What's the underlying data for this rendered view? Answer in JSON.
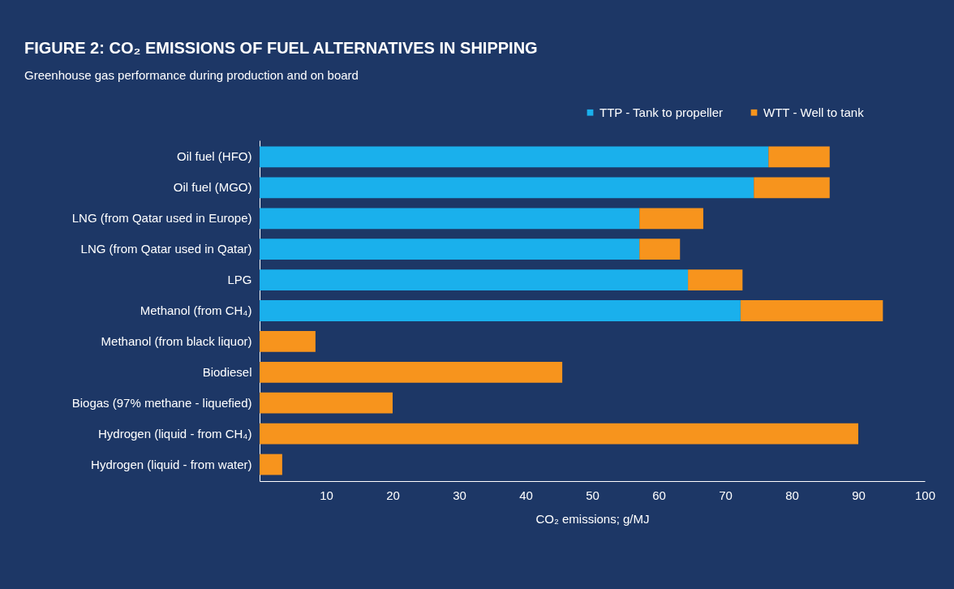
{
  "chart_data": {
    "type": "bar",
    "orientation": "horizontal",
    "stacked": true,
    "title": "FIGURE 2: CO₂ EMISSIONS OF FUEL ALTERNATIVES IN SHIPPING",
    "subtitle": "Greenhouse gas performance during production and on board",
    "xlabel": "CO₂ emissions; g/MJ",
    "categories": [
      "Oil fuel (HFO)",
      "Oil fuel (MGO)",
      "LNG (from Qatar used in Europe)",
      "LNG (from Qatar used in Qatar)",
      "LPG",
      "Methanol (from CH₄)",
      "Methanol (from black liquor)",
      "Biodiesel",
      "Biogas (97% methane - liquefied)",
      "Hydrogen (liquid - from CH₄)",
      "Hydrogen (liquid - from water)"
    ],
    "series": [
      {
        "name": "TTP - Tank to propeller",
        "color": "#1ab0ec",
        "values": [
          76.5,
          74.3,
          57.1,
          57.1,
          64.4,
          72.3,
          null,
          null,
          null,
          null,
          null
        ]
      },
      {
        "name": "WTT - Well to tank",
        "color": "#f7941d",
        "values": [
          9.2,
          11.4,
          9.6,
          6.1,
          8.2,
          21.4,
          8.4,
          45.5,
          20,
          90,
          3.4
        ]
      }
    ],
    "xlim": [
      0,
      100
    ],
    "xticks": [
      10,
      20,
      30,
      40,
      50,
      60,
      70,
      80,
      90,
      100
    ],
    "legend": "top right",
    "grid": false
  }
}
